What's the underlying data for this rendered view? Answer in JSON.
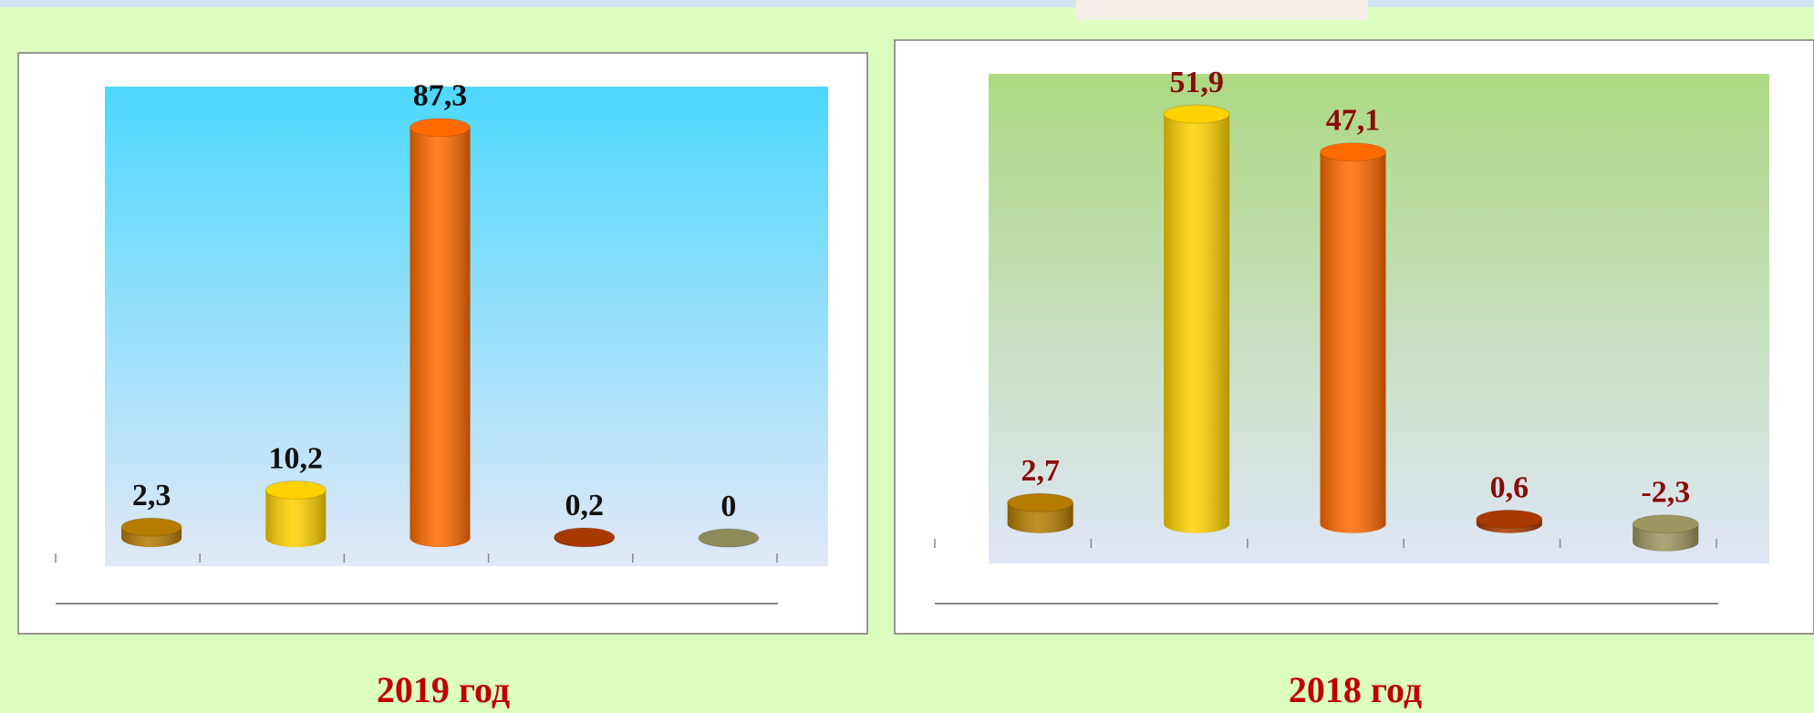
{
  "chart_data": [
    {
      "type": "cylinder-bar",
      "title": "2019 год",
      "categories": [
        null,
        null,
        null,
        null,
        null
      ],
      "values": [
        2.3,
        10.2,
        87.3,
        0.2,
        0
      ],
      "value_labels": [
        "2,3",
        "10,2",
        "87,3",
        "0,2",
        "0"
      ],
      "colors": [
        "#b57c00",
        "#ffd200",
        "#ff6a00",
        "#a83a00",
        "#8d8a5c"
      ],
      "label_color": "#111111",
      "ylim": [
        -6,
        96
      ]
    },
    {
      "type": "cylinder-bar",
      "title": "2018 год",
      "categories": [
        null,
        null,
        null,
        null,
        null
      ],
      "values": [
        2.7,
        51.9,
        47.1,
        0.6,
        -2.3
      ],
      "value_labels": [
        "2,7",
        "51,9",
        "47,1",
        "0,6",
        "-2,3"
      ],
      "colors": [
        "#b57c00",
        "#ffd200",
        "#ff6a00",
        "#a83a00",
        "#9c9660"
      ],
      "label_color": "#8b0a0a",
      "ylim": [
        -5,
        57
      ]
    }
  ]
}
